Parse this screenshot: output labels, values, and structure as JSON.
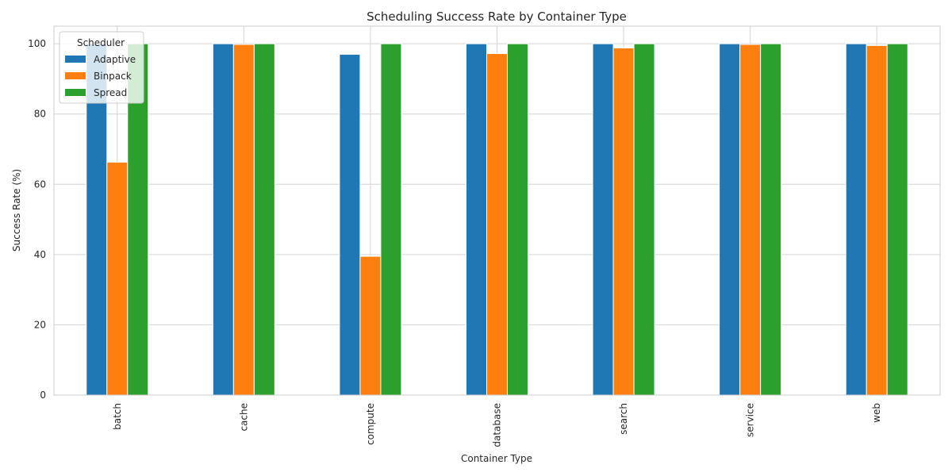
{
  "chart_data": {
    "type": "bar",
    "title": "Scheduling Success Rate by Container Type",
    "xlabel": "Container Type",
    "ylabel": "Success Rate (%)",
    "categories": [
      "batch",
      "cache",
      "compute",
      "database",
      "search",
      "service",
      "web"
    ],
    "series": [
      {
        "name": "Adaptive",
        "color": "#1f77b4",
        "values": [
          100,
          100,
          97,
          100,
          100,
          100,
          100
        ]
      },
      {
        "name": "Binpack",
        "color": "#ff7f0e",
        "values": [
          66.3,
          99.8,
          39.5,
          97.2,
          98.8,
          99.8,
          99.5
        ]
      },
      {
        "name": "Spread",
        "color": "#2ca02c",
        "values": [
          100,
          100,
          100,
          100,
          100,
          100,
          100
        ]
      }
    ],
    "ylim": [
      0,
      105
    ],
    "yticks": [
      0,
      20,
      40,
      60,
      80,
      100
    ],
    "grid": true,
    "legend": {
      "title": "Scheduler",
      "placement": "top-left"
    }
  }
}
